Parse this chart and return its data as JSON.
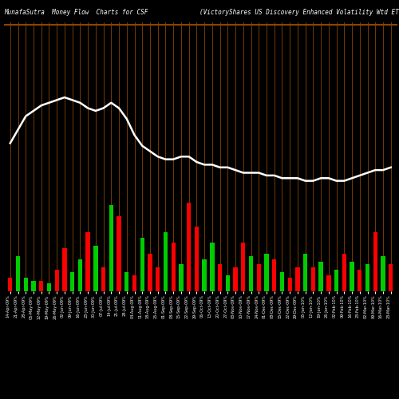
{
  "title_left": "MunafaSutra  Money Flow  Charts for CSF",
  "title_right": "(VictoryShares US Discovery Enhanced Volatility Wtd ETF) MunafaSutra",
  "bg_color": "#000000",
  "grid_color": "#8B4500",
  "bar_colors": [
    "#ff0000",
    "#00cc00",
    "#00cc00",
    "#00cc00",
    "#ff0000",
    "#00cc00",
    "#ff0000",
    "#ff0000",
    "#00cc00",
    "#00cc00",
    "#ff0000",
    "#00cc00",
    "#ff0000",
    "#00cc00",
    "#ff0000",
    "#00cc00",
    "#ff0000",
    "#00cc00",
    "#ff0000",
    "#ff0000",
    "#00cc00",
    "#ff0000",
    "#00cc00",
    "#ff0000",
    "#ff0000",
    "#00cc00",
    "#00cc00",
    "#ff0000",
    "#00cc00",
    "#ff0000",
    "#ff0000",
    "#00cc00",
    "#ff0000",
    "#00cc00",
    "#ff0000",
    "#00cc00",
    "#ff0000",
    "#ff0000",
    "#00cc00",
    "#ff0000",
    "#00cc00",
    "#ff0000",
    "#00cc00",
    "#ff0000",
    "#00cc00",
    "#ff0000",
    "#00cc00",
    "#ff0000",
    "#00cc00",
    "#ff0000"
  ],
  "bar_heights": [
    5,
    13,
    5,
    4,
    4,
    3,
    8,
    16,
    7,
    12,
    22,
    17,
    9,
    32,
    28,
    7,
    6,
    20,
    14,
    9,
    22,
    18,
    10,
    33,
    24,
    12,
    18,
    10,
    6,
    9,
    18,
    13,
    10,
    14,
    12,
    7,
    5,
    9,
    14,
    9,
    11,
    6,
    8,
    14,
    11,
    8,
    10,
    22,
    13,
    10
  ],
  "line_values": [
    55,
    60,
    65,
    67,
    69,
    70,
    71,
    72,
    71,
    70,
    68,
    67,
    68,
    70,
    68,
    64,
    58,
    54,
    52,
    50,
    49,
    49,
    50,
    50,
    48,
    47,
    47,
    46,
    46,
    45,
    44,
    44,
    44,
    43,
    43,
    42,
    42,
    42,
    41,
    41,
    42,
    42,
    41,
    41,
    42,
    43,
    44,
    45,
    45,
    46
  ],
  "xlabels": [
    "14-Apr-09%",
    "21-Apr-09%",
    "28-Apr-09%",
    "05-May-09%",
    "12-May-09%",
    "19-May-09%",
    "26-May-09%",
    "02-Jun-09%",
    "09-Jun-09%",
    "16-Jun-09%",
    "23-Jun-09%",
    "30-Jun-09%",
    "07-Jul-09%",
    "14-Jul-09%",
    "21-Jul-09%",
    "28-Jul-09%",
    "04-Aug-09%",
    "11-Aug-09%",
    "18-Aug-09%",
    "25-Aug-09%",
    "01-Sep-09%",
    "08-Sep-09%",
    "15-Sep-09%",
    "22-Sep-09%",
    "29-Sep-09%",
    "06-Oct-09%",
    "13-Oct-09%",
    "20-Oct-09%",
    "27-Oct-09%",
    "03-Nov-09%",
    "10-Nov-09%",
    "17-Nov-09%",
    "24-Nov-09%",
    "01-Dec-09%",
    "08-Dec-09%",
    "15-Dec-09%",
    "22-Dec-09%",
    "29-Dec-09%",
    "05-Jan-10%",
    "12-Jan-10%",
    "19-Jan-10%",
    "26-Jan-10%",
    "02-Feb-10%",
    "09-Feb-10%",
    "16-Feb-10%",
    "23-Feb-10%",
    "02-Mar-10%",
    "09-Mar-10%",
    "16-Mar-10%",
    "23-Mar-10%"
  ],
  "ylim": [
    0,
    100
  ],
  "line_color": "#ffffff",
  "xlabel_fontsize": 3.5,
  "title_fontsize": 5.5,
  "bar_width": 0.55,
  "linewidth": 1.8
}
